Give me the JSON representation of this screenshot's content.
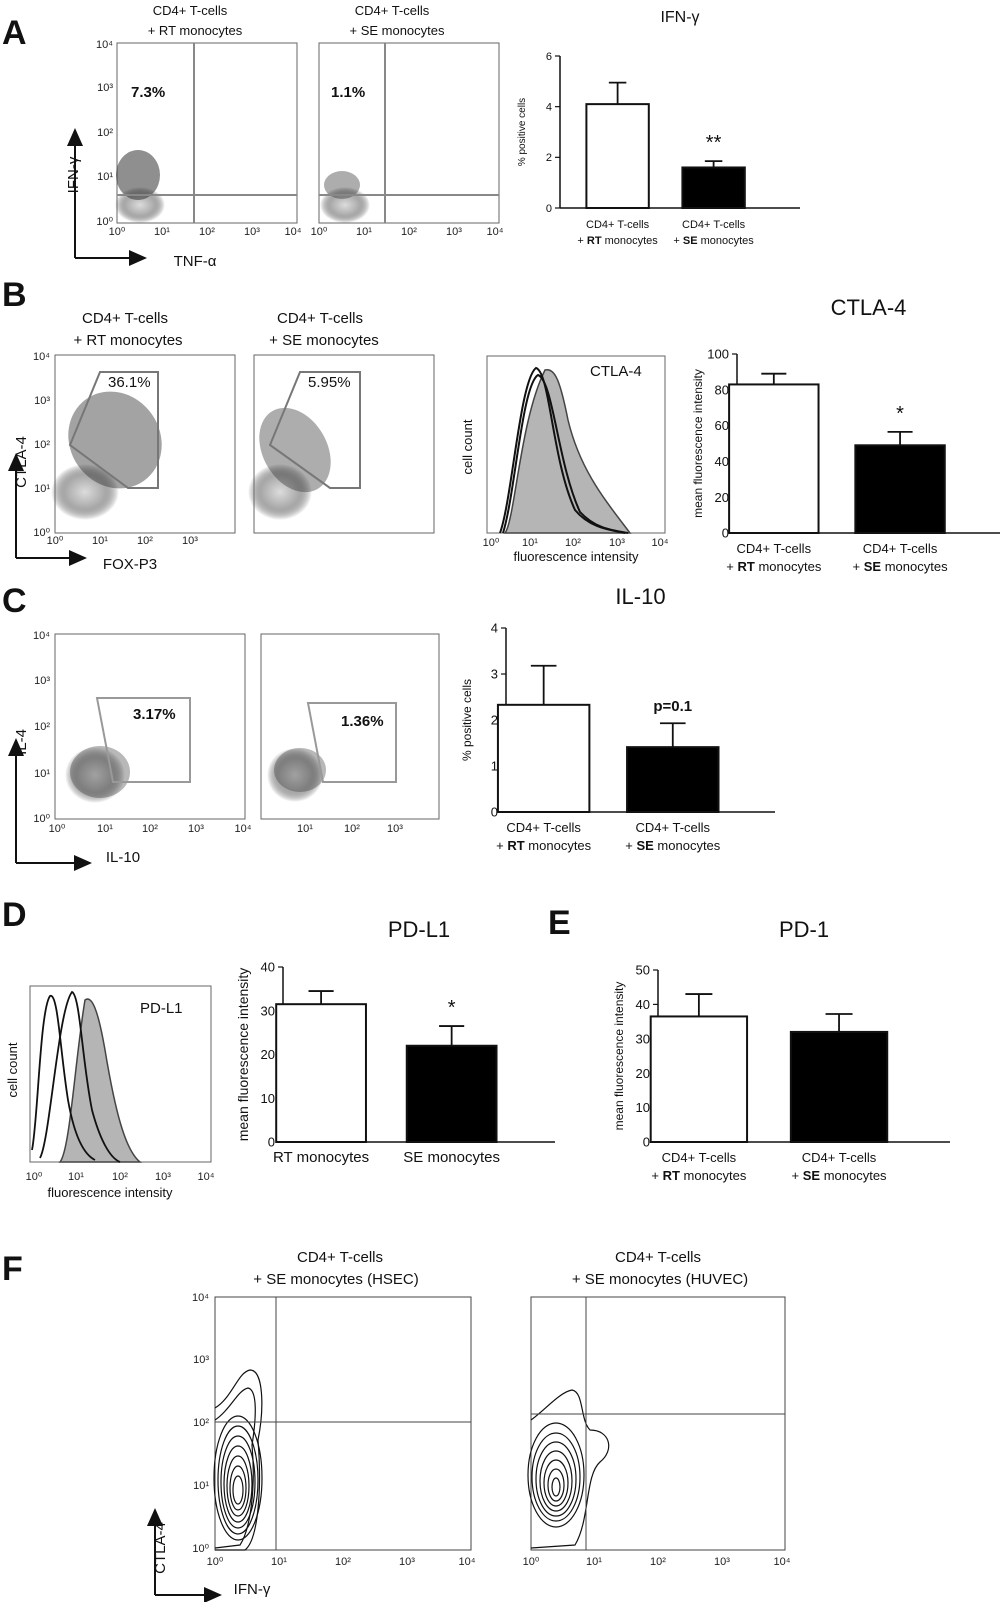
{
  "chart_data": [
    {
      "panel": "A",
      "type": "scatter",
      "subplots": [
        {
          "header": [
            "CD4+ T-cells",
            "+ RT monocytes"
          ],
          "percent": "7.3%"
        },
        {
          "header": [
            "CD4+ T-cells",
            "+ SE monocytes"
          ],
          "percent": "1.1%"
        }
      ],
      "xlabel": "TNF-α",
      "ylabel": "IFN-γ",
      "log_ticks": [
        "10⁰",
        "10¹",
        "10²",
        "10³",
        "10⁴"
      ]
    },
    {
      "panel": "A",
      "type": "bar",
      "title": "IFN-γ",
      "ylabel": "% positive cells",
      "ylim": [
        0,
        6
      ],
      "yticks": [
        0,
        2,
        4,
        6
      ],
      "categories": [
        [
          "CD4+ T-cells",
          "+ RT monocytes"
        ],
        [
          "CD4+ T-cells",
          "+ SE monocytes"
        ]
      ],
      "values": [
        4.1,
        1.6
      ],
      "errors": [
        0.85,
        0.25
      ],
      "significance": [
        "",
        "**"
      ]
    },
    {
      "panel": "B",
      "type": "scatter",
      "subplots": [
        {
          "header": [
            "CD4+ T-cells",
            "+ RT monocytes"
          ],
          "percent": "36.1%"
        },
        {
          "header": [
            "CD4+ T-cells",
            "+ SE monocytes"
          ],
          "percent": "5.95%"
        }
      ],
      "xlabel": "FOX-P3",
      "ylabel": "CTLA-4",
      "log_ticks": [
        "10⁰",
        "10¹",
        "10²",
        "10³",
        "10⁴"
      ]
    },
    {
      "panel": "B",
      "type": "area",
      "label": "CTLA-4",
      "xlabel": "fluorescence intensity",
      "ylabel": "cell count",
      "log_ticks": [
        "10⁰",
        "10¹",
        "10²",
        "10³",
        "10⁴"
      ]
    },
    {
      "panel": "B",
      "type": "bar",
      "title": "CTLA-4",
      "ylabel": "mean fluorescence intensity",
      "ylim": [
        0,
        100
      ],
      "yticks": [
        0,
        20,
        40,
        60,
        80,
        100
      ],
      "categories": [
        [
          "CD4+ T-cells",
          "+ RT monocytes"
        ],
        [
          "CD4+ T-cells",
          "+ SE monocytes"
        ]
      ],
      "values": [
        83,
        49
      ],
      "errors": [
        6,
        7.5
      ],
      "significance": [
        "",
        "*"
      ]
    },
    {
      "panel": "C",
      "type": "scatter",
      "subplots": [
        {
          "percent": "3.17%"
        },
        {
          "percent": "1.36%"
        }
      ],
      "xlabel": "IL-10",
      "ylabel": "IL-4",
      "log_ticks": [
        "10⁰",
        "10¹",
        "10²",
        "10³",
        "10⁴"
      ]
    },
    {
      "panel": "C",
      "type": "bar",
      "title": "IL-10",
      "ylabel": "% positive cells",
      "ylim": [
        0,
        4
      ],
      "yticks": [
        0,
        1,
        2,
        3,
        4
      ],
      "categories": [
        [
          "CD4+ T-cells",
          "+ RT monocytes"
        ],
        [
          "CD4+ T-cells",
          "+ SE monocytes"
        ]
      ],
      "values": [
        2.33,
        1.41
      ],
      "errors": [
        0.85,
        0.52
      ],
      "significance": [
        "",
        "p=0.1"
      ]
    },
    {
      "panel": "D",
      "type": "area",
      "label": "PD-L1",
      "xlabel": "fluorescence intensity",
      "ylabel": "cell count",
      "log_ticks": [
        "10⁰",
        "10¹",
        "10²",
        "10³",
        "10⁴"
      ]
    },
    {
      "panel": "D",
      "type": "bar",
      "title": "PD-L1",
      "ylabel": "mean fluorescence intensity",
      "ylim": [
        0,
        40
      ],
      "yticks": [
        0,
        10,
        20,
        30,
        40
      ],
      "categories": [
        [
          "RT monocytes"
        ],
        [
          "SE monocytes"
        ]
      ],
      "values": [
        31.5,
        22
      ],
      "errors": [
        3,
        4.5
      ],
      "significance": [
        "",
        "*"
      ]
    },
    {
      "panel": "E",
      "type": "bar",
      "title": "PD-1",
      "ylabel": "mean fluorescence intensity",
      "ylim": [
        0,
        50
      ],
      "yticks": [
        0,
        10,
        20,
        30,
        40,
        50
      ],
      "categories": [
        [
          "CD4+ T-cells",
          "+ RT monocytes"
        ],
        [
          "CD4+ T-cells",
          "+ SE monocytes"
        ]
      ],
      "values": [
        36.5,
        32
      ],
      "errors": [
        6.5,
        5.2
      ],
      "significance": [
        "",
        ""
      ]
    },
    {
      "panel": "F",
      "type": "scatter",
      "subplots": [
        {
          "header": [
            "CD4+ T-cells",
            "+  SE monocytes (HSEC)"
          ]
        },
        {
          "header": [
            "CD4+ T-cells",
            "+  SE monocytes (HUVEC)"
          ]
        }
      ],
      "xlabel": "IFN-γ",
      "ylabel": "CTLA-4",
      "log_ticks": [
        "10⁰",
        "10¹",
        "10²",
        "10³",
        "10⁴"
      ]
    }
  ],
  "panel_labels": [
    "A",
    "B",
    "C",
    "D",
    "E",
    "F"
  ]
}
